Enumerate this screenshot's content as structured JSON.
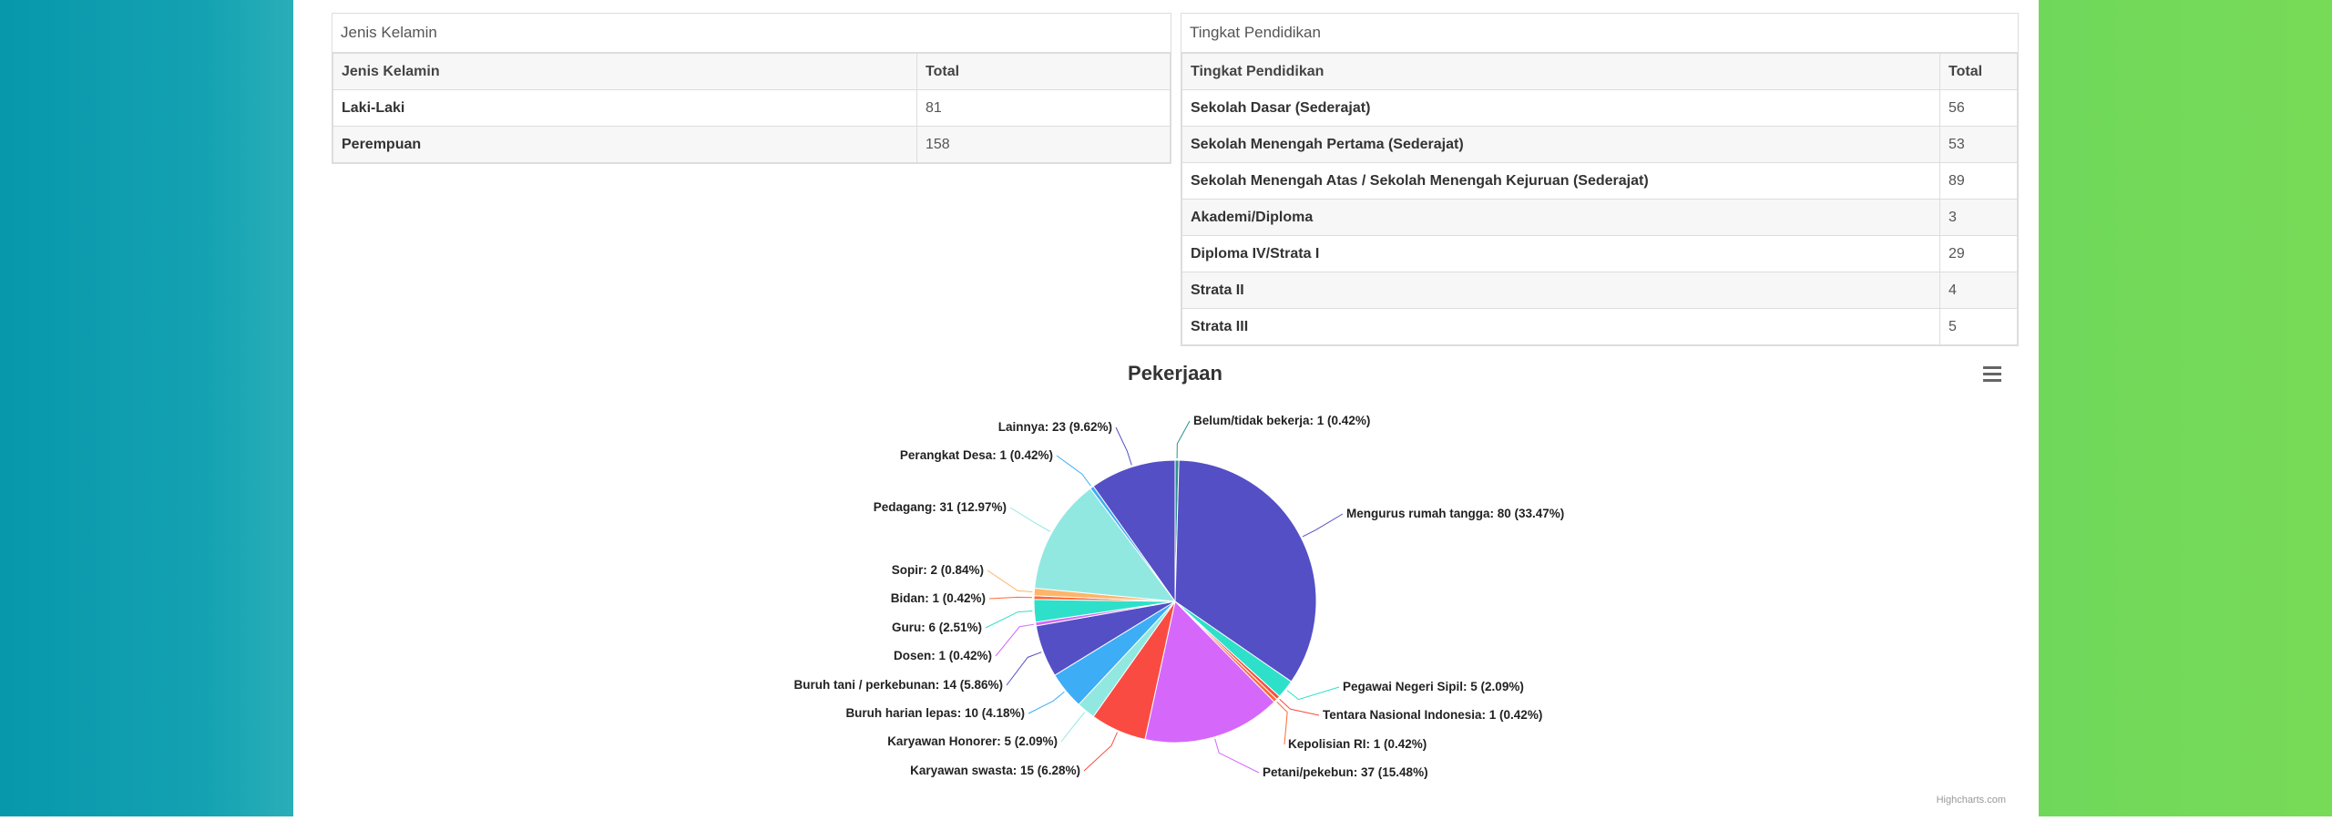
{
  "gender_table": {
    "title": "Jenis Kelamin",
    "headers": [
      "Jenis Kelamin",
      "Total"
    ],
    "rows": [
      {
        "label": "Laki-Laki",
        "value": "81"
      },
      {
        "label": "Perempuan",
        "value": "158"
      }
    ]
  },
  "education_table": {
    "title": "Tingkat Pendidikan",
    "headers": [
      "Tingkat Pendidikan",
      "Total"
    ],
    "rows": [
      {
        "label": "Sekolah Dasar (Sederajat)",
        "value": "56"
      },
      {
        "label": "Sekolah Menengah Pertama (Sederajat)",
        "value": "53"
      },
      {
        "label": "Sekolah Menengah Atas / Sekolah Menengah Kejuruan (Sederajat)",
        "value": "89"
      },
      {
        "label": "Akademi/Diploma",
        "value": "3"
      },
      {
        "label": "Diploma IV/Strata I",
        "value": "29"
      },
      {
        "label": "Strata II",
        "value": "4"
      },
      {
        "label": "Strata III",
        "value": "5"
      }
    ]
  },
  "chart_data": {
    "type": "pie",
    "title": "Pekerjaan",
    "credit": "Highcharts.com",
    "menu_icon": "hamburger-menu-icon",
    "slices": [
      {
        "name": "Belum/tidak bekerja",
        "value": 1,
        "percent": "0.42%",
        "color": "#2b908f"
      },
      {
        "name": "Mengurus rumah tangga",
        "value": 80,
        "percent": "33.47%",
        "color": "#544fc5"
      },
      {
        "name": "Pegawai Negeri Sipil",
        "value": 5,
        "percent": "2.09%",
        "color": "#2ee0ca"
      },
      {
        "name": "Tentara Nasional Indonesia",
        "value": 1,
        "percent": "0.42%",
        "color": "#fa4b42"
      },
      {
        "name": "Kepolisian RI",
        "value": 1,
        "percent": "0.42%",
        "color": "#fe6a35"
      },
      {
        "name": "Petani/pekebun",
        "value": 37,
        "percent": "15.48%",
        "color": "#d568fb"
      },
      {
        "name": "Karyawan swasta",
        "value": 15,
        "percent": "6.28%",
        "color": "#fa4b42"
      },
      {
        "name": "Karyawan Honorer",
        "value": 5,
        "percent": "2.09%",
        "color": "#91e8e1"
      },
      {
        "name": "Buruh harian lepas",
        "value": 10,
        "percent": "4.18%",
        "color": "#3dadf6"
      },
      {
        "name": "Buruh tani / perkebunan",
        "value": 14,
        "percent": "5.86%",
        "color": "#544fc5"
      },
      {
        "name": "Dosen",
        "value": 1,
        "percent": "0.42%",
        "color": "#d568fb"
      },
      {
        "name": "Guru",
        "value": 6,
        "percent": "2.51%",
        "color": "#2ee0ca"
      },
      {
        "name": "Bidan",
        "value": 1,
        "percent": "0.42%",
        "color": "#fe6a35"
      },
      {
        "name": "Sopir",
        "value": 2,
        "percent": "0.84%",
        "color": "#feb56a"
      },
      {
        "name": "Pedagang",
        "value": 31,
        "percent": "12.97%",
        "color": "#91e8e1"
      },
      {
        "name": "Perangkat Desa",
        "value": 1,
        "percent": "0.42%",
        "color": "#3dadf6"
      },
      {
        "name": "Lainnya",
        "value": 23,
        "percent": "9.62%",
        "color": "#544fc5"
      }
    ]
  }
}
